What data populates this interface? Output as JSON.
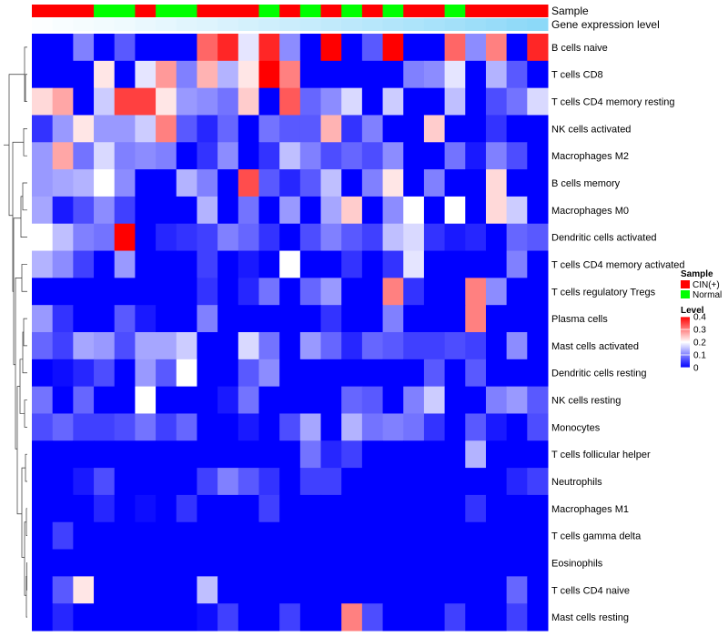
{
  "chart_data": {
    "type": "heatmap",
    "annotations": [
      {
        "label": "Sample",
        "values": [
          "CIN(+)",
          "CIN(+)",
          "CIN(+)",
          "Normal",
          "Normal",
          "CIN(+)",
          "Normal",
          "Normal",
          "CIN(+)",
          "CIN(+)",
          "CIN(+)",
          "Normal",
          "CIN(+)",
          "Normal",
          "CIN(+)",
          "Normal",
          "CIN(+)",
          "Normal",
          "CIN(+)",
          "CIN(+)",
          "Normal",
          "CIN(+)",
          "CIN(+)",
          "CIN(+)",
          "CIN(+)"
        ]
      },
      {
        "label": "Gene expression level",
        "values": [
          0.02,
          0.04,
          0.06,
          0.08,
          0.1,
          0.13,
          0.15,
          0.18,
          0.2,
          0.23,
          0.26,
          0.29,
          0.32,
          0.35,
          0.38,
          0.41,
          0.44,
          0.47,
          0.5,
          0.53,
          0.56,
          0.6,
          0.63,
          0.67,
          0.7
        ]
      }
    ],
    "rows": [
      "B cells naive",
      "T cells CD8",
      "T cells CD4 memory resting",
      "NK cells activated",
      "Macrophages M2",
      "B cells memory",
      "Macrophages M0",
      "Dendritic cells activated",
      "T cells CD4 memory activated",
      "T cells regulatory  Tregs",
      "Plasma cells",
      "Mast cells activated",
      "Dendritic cells resting",
      "NK cells resting",
      "Monocytes",
      "T cells follicular helper",
      "Neutrophils",
      "Macrophages M1",
      "T cells gamma delta",
      "Eosinophils",
      "T cells CD4 naive",
      "Mast cells resting"
    ],
    "values": [
      [
        0.0,
        0.0,
        0.1,
        0.0,
        0.07,
        0.0,
        0.0,
        0.0,
        0.32,
        0.37,
        0.18,
        0.37,
        0.11,
        0.0,
        0.4,
        0.0,
        0.07,
        0.4,
        0.0,
        0.0,
        0.32,
        0.11,
        0.3,
        0.0,
        0.37
      ],
      [
        0.0,
        0.0,
        0.0,
        0.22,
        0.0,
        0.18,
        0.28,
        0.1,
        0.26,
        0.14,
        0.22,
        0.4,
        0.3,
        0.0,
        0.0,
        0.0,
        0.0,
        0.0,
        0.1,
        0.11,
        0.18,
        0.0,
        0.14,
        0.07,
        0.0
      ],
      [
        0.23,
        0.27,
        0.0,
        0.16,
        0.35,
        0.35,
        0.22,
        0.12,
        0.11,
        0.09,
        0.24,
        0.0,
        0.33,
        0.08,
        0.11,
        0.17,
        0.0,
        0.16,
        0.0,
        0.0,
        0.15,
        0.0,
        0.06,
        0.09,
        0.17
      ],
      [
        0.04,
        0.12,
        0.22,
        0.12,
        0.12,
        0.16,
        0.3,
        0.07,
        0.03,
        0.08,
        0.0,
        0.09,
        0.07,
        0.07,
        0.26,
        0.04,
        0.1,
        0.0,
        0.0,
        0.24,
        0.0,
        0.0,
        0.04,
        0.0,
        0.0
      ],
      [
        0.12,
        0.27,
        0.09,
        0.17,
        0.1,
        0.11,
        0.1,
        0.0,
        0.04,
        0.11,
        0.0,
        0.04,
        0.15,
        0.1,
        0.06,
        0.08,
        0.06,
        0.11,
        0.0,
        0.0,
        0.09,
        0.02,
        0.1,
        0.06,
        0.0
      ],
      [
        0.12,
        0.13,
        0.14,
        0.2,
        0.11,
        0.0,
        0.0,
        0.14,
        0.1,
        0.0,
        0.34,
        0.07,
        0.03,
        0.07,
        0.15,
        0.0,
        0.1,
        0.22,
        0.0,
        0.1,
        0.0,
        0.0,
        0.23,
        0.0,
        0.0
      ],
      [
        0.13,
        0.02,
        0.06,
        0.11,
        0.05,
        0.0,
        0.0,
        0.0,
        0.14,
        0.0,
        0.09,
        0.0,
        0.12,
        0.0,
        0.13,
        0.24,
        0.0,
        0.11,
        0.2,
        0.0,
        0.2,
        0.0,
        0.23,
        0.16,
        0.0
      ],
      [
        0.2,
        0.15,
        0.1,
        0.09,
        0.4,
        0.0,
        0.03,
        0.04,
        0.05,
        0.1,
        0.08,
        0.04,
        0.0,
        0.06,
        0.1,
        0.07,
        0.05,
        0.15,
        0.17,
        0.04,
        0.02,
        0.03,
        0.0,
        0.08,
        0.07
      ],
      [
        0.14,
        0.11,
        0.05,
        0.0,
        0.12,
        0.0,
        0.0,
        0.0,
        0.05,
        0.0,
        0.02,
        0.0,
        0.2,
        0.0,
        0.0,
        0.04,
        0.0,
        0.04,
        0.18,
        0.0,
        0.0,
        0.0,
        0.0,
        0.1,
        0.0
      ],
      [
        0.0,
        0.0,
        0.0,
        0.0,
        0.0,
        0.0,
        0.0,
        0.0,
        0.04,
        0.0,
        0.03,
        0.09,
        0.0,
        0.08,
        0.12,
        0.0,
        0.0,
        0.3,
        0.04,
        0.0,
        0.0,
        0.3,
        0.11,
        0.0,
        0.0
      ],
      [
        0.12,
        0.04,
        0.0,
        0.0,
        0.07,
        0.02,
        0.0,
        0.0,
        0.1,
        0.0,
        0.0,
        0.0,
        0.0,
        0.0,
        0.04,
        0.0,
        0.0,
        0.1,
        0.0,
        0.0,
        0.0,
        0.3,
        0.0,
        0.0,
        0.0
      ],
      [
        0.08,
        0.05,
        0.13,
        0.12,
        0.06,
        0.13,
        0.13,
        0.16,
        0.0,
        0.0,
        0.17,
        0.09,
        0.0,
        0.12,
        0.08,
        0.03,
        0.08,
        0.07,
        0.05,
        0.05,
        0.06,
        0.05,
        0.0,
        0.11,
        0.0
      ],
      [
        0.0,
        0.01,
        0.03,
        0.06,
        0.0,
        0.12,
        0.07,
        0.2,
        0.0,
        0.0,
        0.07,
        0.11,
        0.0,
        0.0,
        0.0,
        0.0,
        0.0,
        0.0,
        0.0,
        0.07,
        0.0,
        0.07,
        0.0,
        0.0,
        0.0
      ],
      [
        0.09,
        0.0,
        0.08,
        0.0,
        0.0,
        0.2,
        0.0,
        0.0,
        0.0,
        0.02,
        0.09,
        0.0,
        0.0,
        0.0,
        0.0,
        0.08,
        0.07,
        0.0,
        0.1,
        0.16,
        0.0,
        0.0,
        0.1,
        0.12,
        0.07
      ],
      [
        0.06,
        0.08,
        0.05,
        0.05,
        0.06,
        0.09,
        0.05,
        0.08,
        0.0,
        0.0,
        0.02,
        0.0,
        0.06,
        0.13,
        0.0,
        0.14,
        0.09,
        0.1,
        0.09,
        0.04,
        0.0,
        0.07,
        0.02,
        0.0,
        0.06
      ],
      [
        0.0,
        0.0,
        0.0,
        0.0,
        0.0,
        0.0,
        0.0,
        0.0,
        0.0,
        0.0,
        0.0,
        0.0,
        0.0,
        0.09,
        0.03,
        0.05,
        0.0,
        0.0,
        0.0,
        0.0,
        0.0,
        0.14,
        0.0,
        0.0,
        0.0
      ],
      [
        0.0,
        0.0,
        0.02,
        0.06,
        0.0,
        0.0,
        0.0,
        0.0,
        0.05,
        0.1,
        0.07,
        0.04,
        0.0,
        0.05,
        0.05,
        0.0,
        0.0,
        0.0,
        0.0,
        0.0,
        0.0,
        0.0,
        0.0,
        0.03,
        0.05
      ],
      [
        0.0,
        0.0,
        0.0,
        0.03,
        0.0,
        0.01,
        0.0,
        0.04,
        0.0,
        0.0,
        0.0,
        0.05,
        0.0,
        0.0,
        0.0,
        0.0,
        0.0,
        0.0,
        0.0,
        0.0,
        0.0,
        0.04,
        0.0,
        0.0,
        0.0
      ],
      [
        0.0,
        0.05,
        0.0,
        0.0,
        0.0,
        0.0,
        0.0,
        0.0,
        0.0,
        0.0,
        0.0,
        0.0,
        0.0,
        0.0,
        0.0,
        0.0,
        0.0,
        0.0,
        0.0,
        0.0,
        0.0,
        0.0,
        0.0,
        0.0,
        0.0
      ],
      [
        0.0,
        0.0,
        0.0,
        0.0,
        0.0,
        0.0,
        0.0,
        0.0,
        0.0,
        0.0,
        0.0,
        0.0,
        0.0,
        0.0,
        0.0,
        0.0,
        0.0,
        0.0,
        0.0,
        0.0,
        0.0,
        0.0,
        0.0,
        0.0,
        0.0
      ],
      [
        0.0,
        0.07,
        0.22,
        0.0,
        0.0,
        0.0,
        0.0,
        0.0,
        0.15,
        0.0,
        0.0,
        0.0,
        0.0,
        0.0,
        0.0,
        0.0,
        0.0,
        0.0,
        0.0,
        0.0,
        0.0,
        0.0,
        0.0,
        0.08,
        0.0
      ],
      [
        0.0,
        0.03,
        0.0,
        0.0,
        0.0,
        0.0,
        0.0,
        0.0,
        0.01,
        0.05,
        0.0,
        0.0,
        0.05,
        0.0,
        0.0,
        0.3,
        0.06,
        0.0,
        0.0,
        0.0,
        0.05,
        0.0,
        0.0,
        0.05,
        0.0
      ]
    ],
    "color_scale": {
      "title": "Level",
      "min": 0,
      "max": 0.4,
      "ticks": [
        "0.4",
        "0.3",
        "0.2",
        "0.1",
        "0"
      ],
      "tick_values": [
        0.4,
        0.3,
        0.2,
        0.1,
        0
      ],
      "colors": [
        "#0000ff",
        "#ffffff",
        "#ff0000"
      ]
    },
    "legend": {
      "title": "Sample",
      "items": [
        {
          "label": "CIN(+)",
          "color": "#ff0000"
        },
        {
          "label": "Normal",
          "color": "#00ff00"
        }
      ],
      "position": "right"
    },
    "expression_colors": [
      "#ffffff",
      "#5bc8f5"
    ],
    "dendrogram": "left"
  }
}
